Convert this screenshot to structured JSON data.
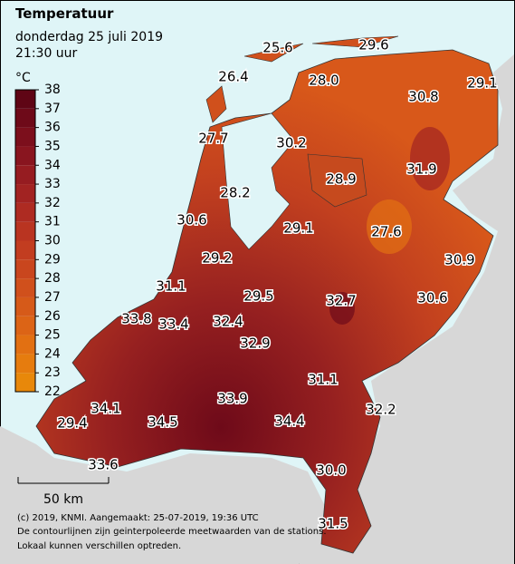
{
  "header": {
    "title": "Temperatuur",
    "date": "donderdag 25 juli 2019",
    "time": "21:30 uur"
  },
  "legend": {
    "unit": "°C",
    "ticks": [
      22,
      23,
      24,
      25,
      26,
      27,
      28,
      29,
      30,
      31,
      32,
      33,
      34,
      35,
      36,
      37,
      38
    ],
    "colors": [
      "#e8880a",
      "#e67c0e",
      "#e27012",
      "#dc6416",
      "#d65a19",
      "#d0501c",
      "#c9461e",
      "#c23d20",
      "#b93421",
      "#ae2b22",
      "#a22322",
      "#961c21",
      "#89151f",
      "#7c0f1c",
      "#6e0a19",
      "#5f0515"
    ]
  },
  "stations": [
    {
      "label": "25.6"
    },
    {
      "label": "29.6"
    },
    {
      "label": "26.4"
    },
    {
      "label": "28.0"
    },
    {
      "label": "29.1"
    },
    {
      "label": "30.8"
    },
    {
      "label": "27.7"
    },
    {
      "label": "30.2"
    },
    {
      "label": "31.9"
    },
    {
      "label": "28.9"
    },
    {
      "label": "28.2"
    },
    {
      "label": "30.6"
    },
    {
      "label": "29.1"
    },
    {
      "label": "27.6"
    },
    {
      "label": "30.9"
    },
    {
      "label": "29.2"
    },
    {
      "label": "31.1"
    },
    {
      "label": "29.5"
    },
    {
      "label": "32.7"
    },
    {
      "label": "30.6"
    },
    {
      "label": "33.8"
    },
    {
      "label": "33.4"
    },
    {
      "label": "32.4"
    },
    {
      "label": "32.9"
    },
    {
      "label": "31.1"
    },
    {
      "label": "33.9"
    },
    {
      "label": "34.1"
    },
    {
      "label": "32.2"
    },
    {
      "label": "29.4"
    },
    {
      "label": "34.5"
    },
    {
      "label": "34.4"
    },
    {
      "label": "33.6"
    },
    {
      "label": "30.0"
    },
    {
      "label": "31.5"
    }
  ],
  "scale": {
    "label": "50 km"
  },
  "footer": [
    "(c) 2019, KNMI. Aangemaakt: 25-07-2019, 19:36 UTC",
    "De contourlijnen zijn geinterpoleerde meetwaarden van de stations.",
    "Lokaal kunnen verschillen optreden."
  ]
}
